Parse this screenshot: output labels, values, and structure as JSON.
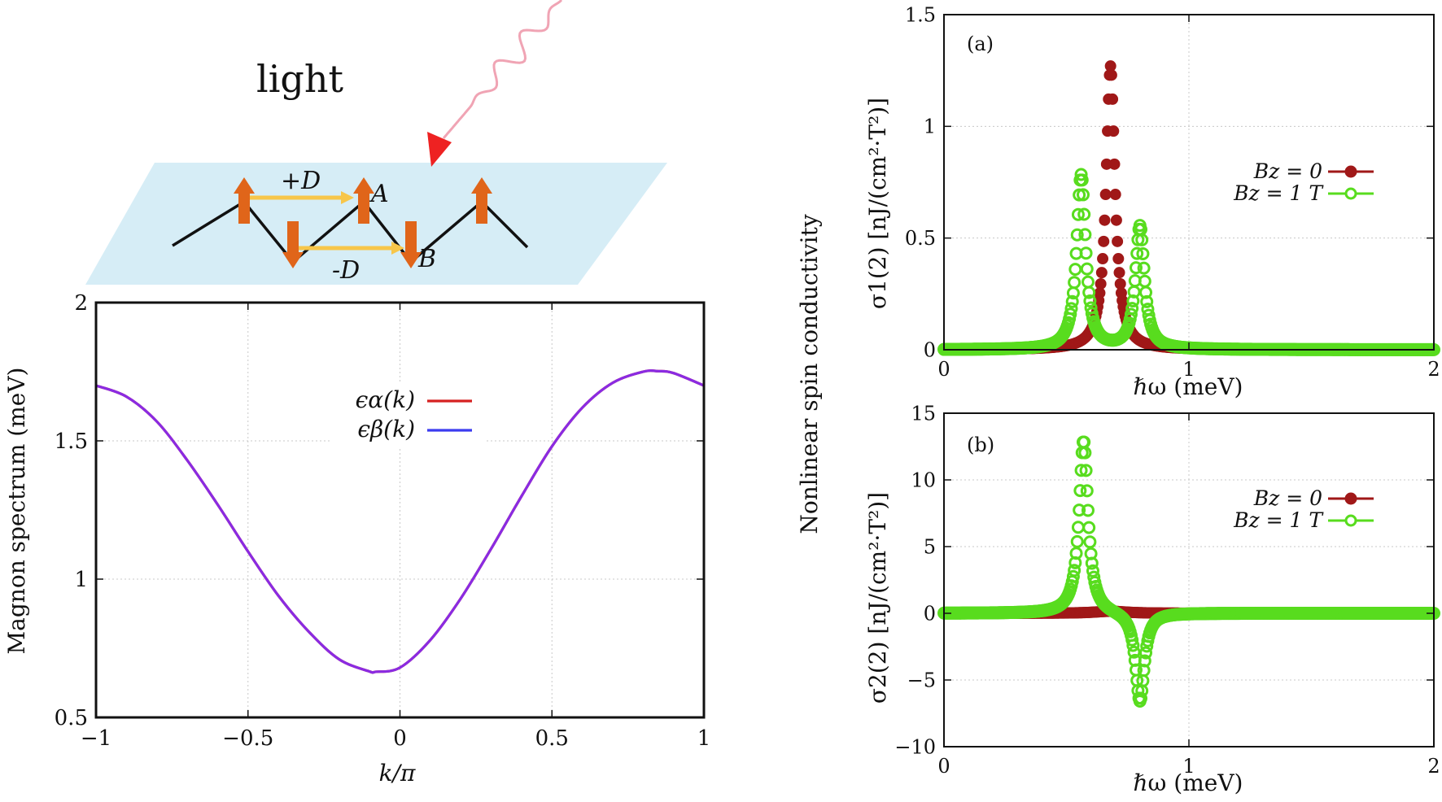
{
  "illustration": {
    "light_label": "light",
    "plus_d_label": "+D",
    "minus_d_label": "-D",
    "site_a_label": "A",
    "site_b_label": "B",
    "colors": {
      "plane": "#d6edf6",
      "spin": "#e0651a",
      "dm_arrow": "#f7c64a",
      "light": "#f0a4b4",
      "light_head": "#ee2222",
      "chain": "#111111"
    }
  },
  "shared_ylabel": "Nonlinear spin conductivity",
  "chart_data": [
    {
      "id": "magnon",
      "type": "line",
      "xlabel": "k/π",
      "ylabel": "Magnon spectrum (meV)",
      "xlim": [
        -1,
        1
      ],
      "ylim": [
        0.5,
        2
      ],
      "xticks": [
        -1,
        -0.5,
        0,
        0.5,
        1
      ],
      "xtick_labels": [
        "−1",
        "−0.5",
        "0",
        "0.5",
        "1"
      ],
      "yticks": [
        0.5,
        1,
        1.5,
        2
      ],
      "ytick_labels": [
        "0.5",
        "1",
        "1.5",
        "2"
      ],
      "grid": true,
      "legend_position": "top-center",
      "x": [
        -1,
        -0.9,
        -0.8,
        -0.7,
        -0.6,
        -0.5,
        -0.4,
        -0.3,
        -0.2,
        -0.1,
        -0.08,
        0,
        0.1,
        0.2,
        0.3,
        0.4,
        0.5,
        0.6,
        0.7,
        0.8,
        0.85,
        0.9,
        1
      ],
      "series": [
        {
          "name": "ϵα(k)",
          "color": "#d62020",
          "values": [
            1.7,
            1.66,
            1.57,
            1.43,
            1.27,
            1.1,
            0.94,
            0.81,
            0.71,
            0.666,
            0.665,
            0.68,
            0.78,
            0.93,
            1.11,
            1.3,
            1.48,
            1.62,
            1.71,
            1.75,
            1.752,
            1.745,
            1.7
          ]
        },
        {
          "name": "ϵβ(k)",
          "color": "#3b3bf0",
          "values": [
            1.7,
            1.66,
            1.57,
            1.43,
            1.27,
            1.1,
            0.94,
            0.81,
            0.71,
            0.666,
            0.665,
            0.68,
            0.78,
            0.93,
            1.11,
            1.3,
            1.48,
            1.62,
            1.71,
            1.75,
            1.752,
            1.745,
            1.7
          ]
        }
      ],
      "display_color": "#8a2be2"
    },
    {
      "id": "panel_a",
      "type": "scatter",
      "panel_label": "(a)",
      "xlabel": "ℏω (meV)",
      "ylabel": "σ1(2) [nJ/(cm²·T²)]",
      "xlim": [
        0,
        2
      ],
      "ylim": [
        0,
        1.5
      ],
      "xticks": [
        0,
        1,
        2
      ],
      "xtick_labels": [
        "0",
        "1",
        "2"
      ],
      "yticks": [
        0,
        0.5,
        1,
        1.5
      ],
      "ytick_labels": [
        "0",
        "0.5",
        "1",
        "1.5"
      ],
      "grid": true,
      "legend_position": "right",
      "series": [
        {
          "name": "Bz = 0",
          "color": "#a01818",
          "marker": "filled-circle",
          "peaks": [
            {
              "center": 0.68,
              "amplitude": 1.27,
              "width": 0.022
            }
          ]
        },
        {
          "name": "Bz = 1 T",
          "color": "#58dc1e",
          "marker": "open-circle",
          "peaks": [
            {
              "center": 0.56,
              "amplitude": 0.78,
              "width": 0.022
            },
            {
              "center": 0.8,
              "amplitude": 0.55,
              "width": 0.022
            }
          ]
        }
      ]
    },
    {
      "id": "panel_b",
      "type": "scatter",
      "panel_label": "(b)",
      "xlabel": "ℏω (meV)",
      "ylabel": "σ2(2) [nJ/(cm²·T²)]",
      "xlim": [
        0,
        2
      ],
      "ylim": [
        -10,
        15
      ],
      "xticks": [
        0,
        1,
        2
      ],
      "xtick_labels": [
        "0",
        "1",
        "2"
      ],
      "yticks": [
        -10,
        -5,
        0,
        5,
        10,
        15
      ],
      "ytick_labels": [
        "−10",
        "−5",
        "0",
        "5",
        "10",
        "15"
      ],
      "grid": true,
      "legend_position": "right",
      "series": [
        {
          "name": "Bz = 0",
          "color": "#a01818",
          "marker": "filled-circle",
          "peaks": [
            {
              "center": 0.68,
              "amplitude": 0.15,
              "width": 0.08
            }
          ]
        },
        {
          "name": "Bz = 1 T",
          "color": "#58dc1e",
          "marker": "open-circle",
          "peaks": [
            {
              "center": 0.57,
              "amplitude": 13,
              "width": 0.022
            },
            {
              "center": 0.8,
              "amplitude": -6.7,
              "width": 0.022
            }
          ]
        }
      ]
    }
  ]
}
